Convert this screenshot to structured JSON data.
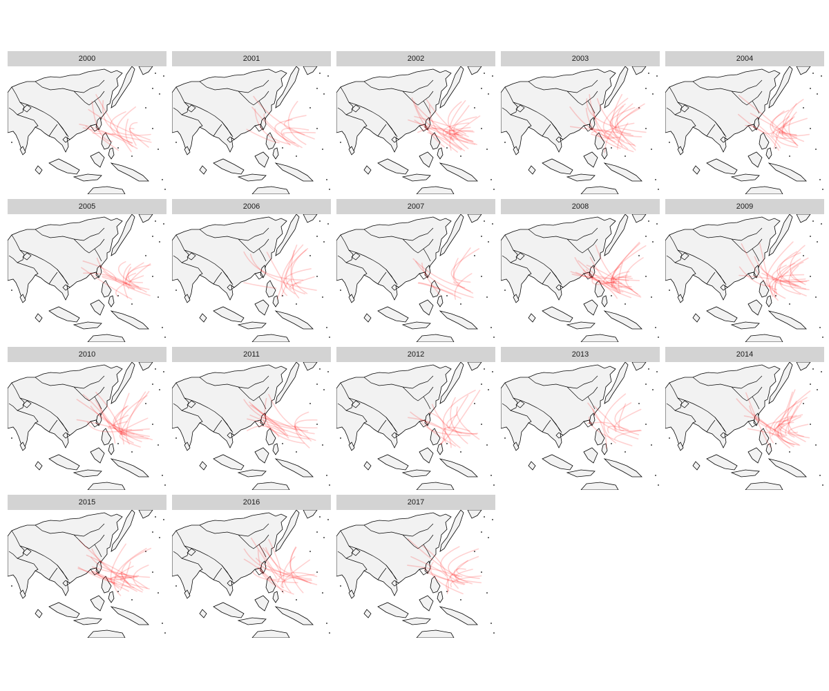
{
  "figure": {
    "land_color": "#f2f2f2",
    "border_color": "#000000",
    "track_color": "#ff0000",
    "panels": [
      {
        "label": "2000"
      },
      {
        "label": "2001"
      },
      {
        "label": "2002"
      },
      {
        "label": "2003"
      },
      {
        "label": "2004"
      },
      {
        "label": "2005"
      },
      {
        "label": "2006"
      },
      {
        "label": "2007"
      },
      {
        "label": "2008"
      },
      {
        "label": "2009"
      },
      {
        "label": "2010"
      },
      {
        "label": "2011"
      },
      {
        "label": "2012"
      },
      {
        "label": "2013"
      },
      {
        "label": "2014"
      },
      {
        "label": "2015"
      },
      {
        "label": "2016"
      },
      {
        "label": "2017"
      }
    ]
  }
}
